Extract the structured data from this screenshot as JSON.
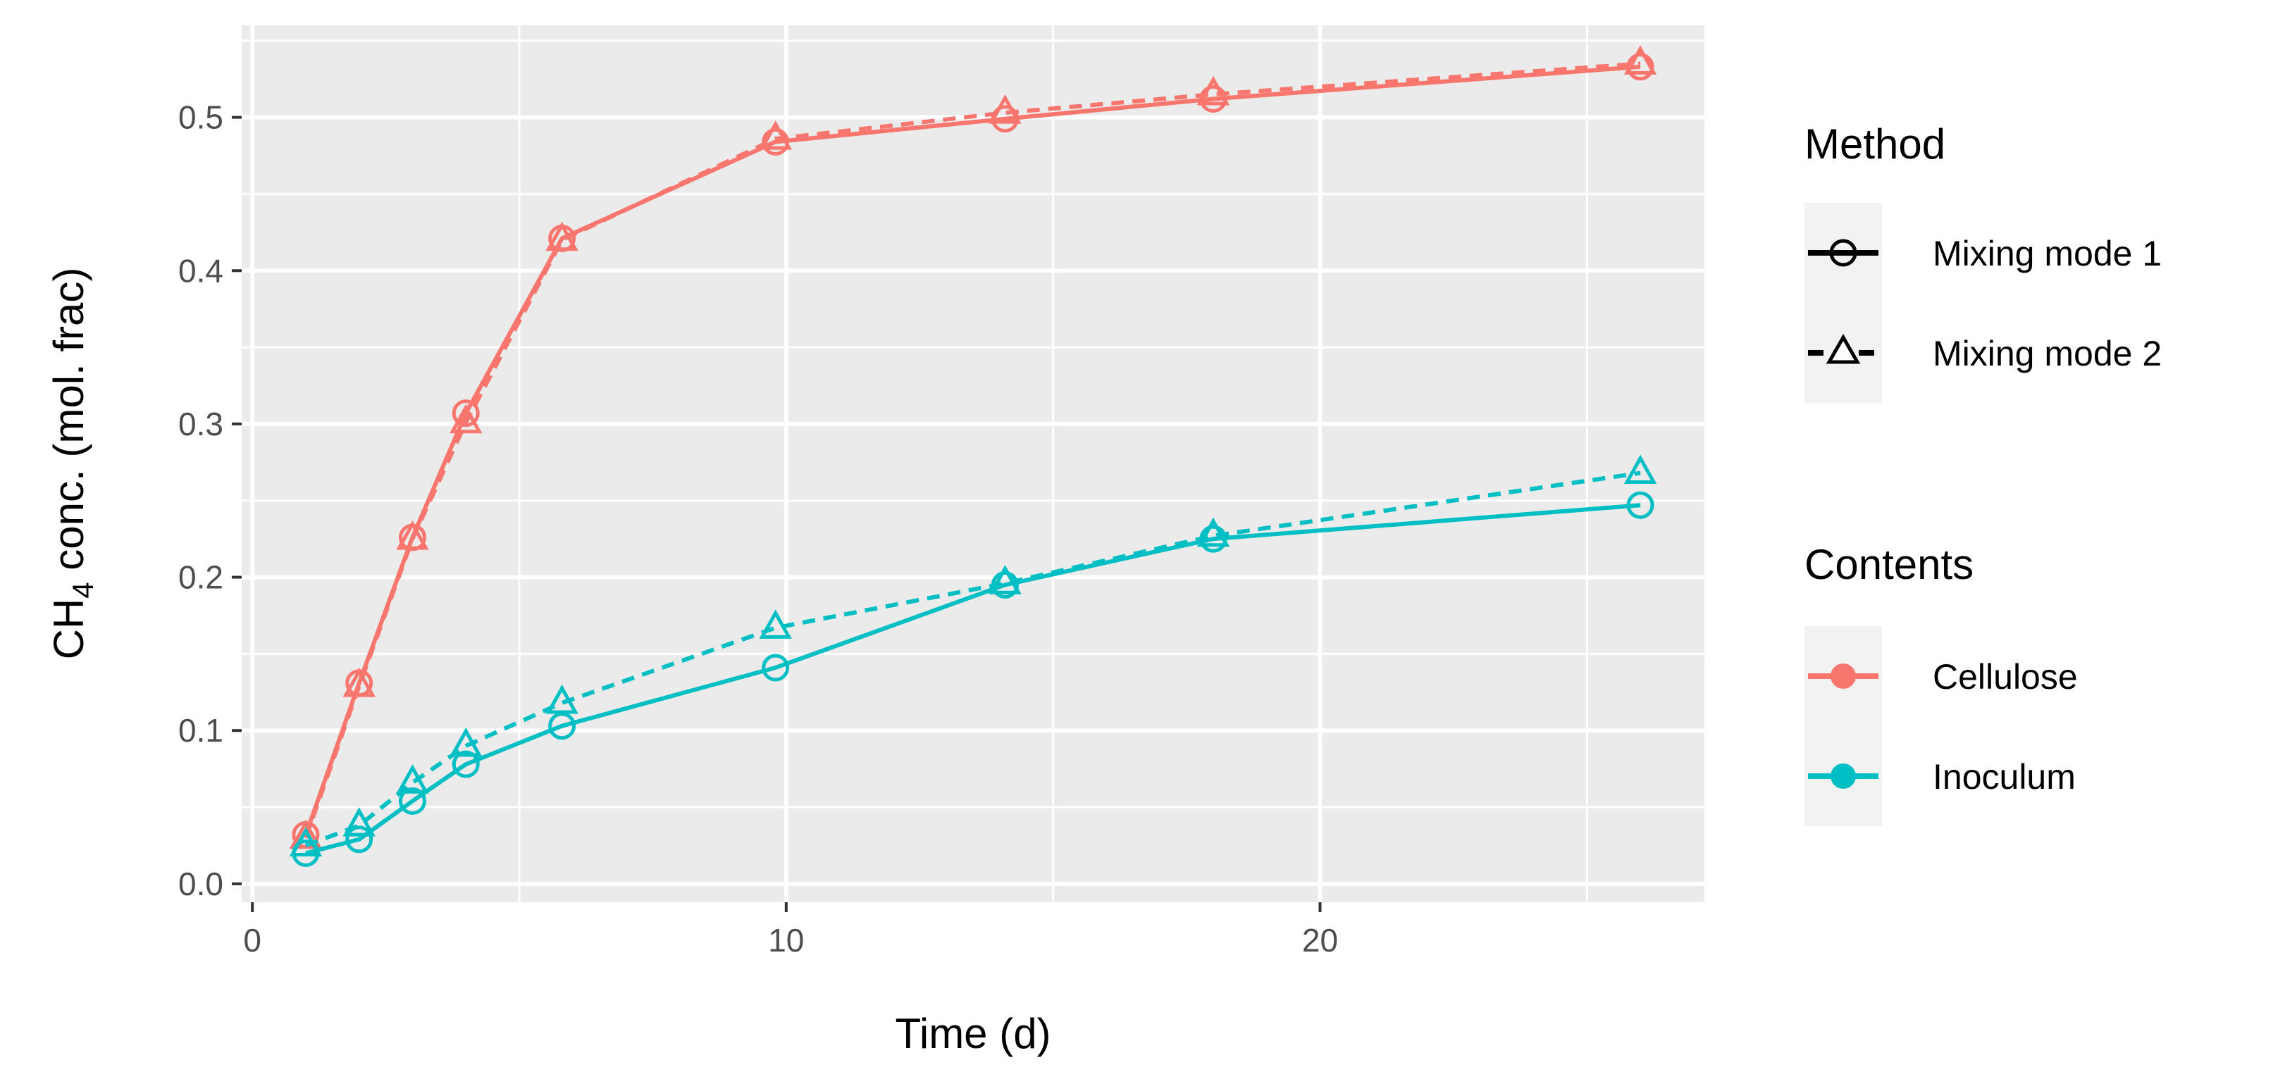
{
  "chart_data": {
    "type": "line",
    "xlabel": "Time (d)",
    "ylabel": {
      "prefix": "CH",
      "subscript": "4",
      "suffix": " conc. (mol. frac)"
    },
    "xlim": [
      -0.2,
      27.2
    ],
    "ylim": [
      -0.012,
      0.56
    ],
    "x_ticks": [
      0,
      10,
      20
    ],
    "x_tick_labels": [
      "0",
      "10",
      "20"
    ],
    "y_ticks": [
      0.0,
      0.1,
      0.2,
      0.3,
      0.4,
      0.5
    ],
    "y_tick_labels": [
      "0.0",
      "0.1",
      "0.2",
      "0.3",
      "0.4",
      "0.5"
    ],
    "grid": true,
    "panel_background": "#ebebeb",
    "legend_position": "right",
    "series": [
      {
        "contents": "Cellulose",
        "method": "Mixing mode 1",
        "color": "#f8766d",
        "line": "solid",
        "marker": "circle",
        "x": [
          1,
          2,
          3,
          4,
          5.8,
          9.8,
          14.1,
          18,
          26
        ],
        "y": [
          0.032,
          0.131,
          0.226,
          0.307,
          0.421,
          0.484,
          0.499,
          0.512,
          0.533
        ]
      },
      {
        "contents": "Cellulose",
        "method": "Mixing mode 2",
        "color": "#f8766d",
        "line": "dashed",
        "marker": "triangle",
        "x": [
          1,
          2,
          3,
          4,
          5.8,
          9.8,
          14.1,
          18,
          26
        ],
        "y": [
          0.03,
          0.129,
          0.225,
          0.301,
          0.42,
          0.486,
          0.503,
          0.515,
          0.535
        ]
      },
      {
        "contents": "Inoculum",
        "method": "Mixing mode 1",
        "color": "#00bfc4",
        "line": "solid",
        "marker": "circle",
        "x": [
          1,
          2,
          3,
          4,
          5.8,
          9.8,
          14.1,
          18,
          26
        ],
        "y": [
          0.02,
          0.029,
          0.054,
          0.078,
          0.103,
          0.141,
          0.195,
          0.225,
          0.247
        ]
      },
      {
        "contents": "Inoculum",
        "method": "Mixing mode 2",
        "color": "#00bfc4",
        "line": "dashed",
        "marker": "triangle",
        "x": [
          1,
          2,
          3,
          4,
          5.8,
          9.8,
          14.1,
          18,
          26
        ],
        "y": [
          0.025,
          0.038,
          0.066,
          0.09,
          0.118,
          0.167,
          0.196,
          0.227,
          0.268
        ]
      }
    ]
  },
  "legend": {
    "method": {
      "title": "Method",
      "items": [
        {
          "label": "Mixing mode 1",
          "line": "solid",
          "marker": "circle"
        },
        {
          "label": "Mixing mode 2",
          "line": "dashed",
          "marker": "triangle"
        }
      ]
    },
    "contents": {
      "title": "Contents",
      "items": [
        {
          "label": "Cellulose",
          "color": "#f8766d"
        },
        {
          "label": "Inoculum",
          "color": "#00bfc4"
        }
      ]
    }
  }
}
